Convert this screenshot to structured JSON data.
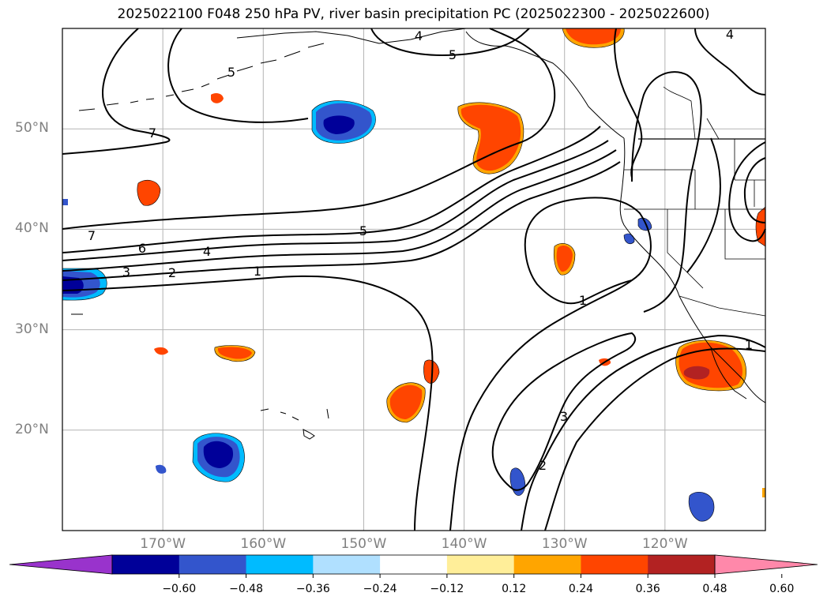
{
  "title": "2025022100 F048 250 hPa PV, river basin precipitation PC (2025022300 - 2025022600)",
  "map": {
    "projection": "equirectangular",
    "lon_range": [
      -180,
      -110
    ],
    "lat_range": [
      10,
      60
    ],
    "grid": true,
    "lat_ticks": [
      {
        "value": 20,
        "label": "20°N"
      },
      {
        "value": 30,
        "label": "30°N"
      },
      {
        "value": 40,
        "label": "40°N"
      },
      {
        "value": 50,
        "label": "50°N"
      }
    ],
    "lon_ticks": [
      {
        "value": -170,
        "label": "170°W"
      },
      {
        "value": -160,
        "label": "160°W"
      },
      {
        "value": -150,
        "label": "150°W"
      },
      {
        "value": -140,
        "label": "140°W"
      },
      {
        "value": -130,
        "label": "130°W"
      },
      {
        "value": -120,
        "label": "120°W"
      }
    ],
    "contour_labels": [
      "7",
      "6",
      "5",
      "4",
      "3",
      "2",
      "1",
      "5",
      "5",
      "4",
      "4",
      "1",
      "1",
      "3",
      "2",
      "7"
    ]
  },
  "colorbar": {
    "orientation": "horizontal",
    "extend": "both",
    "colors": [
      "#9933cc",
      "#000099",
      "#3355cc",
      "#00bbff",
      "#b0e0ff",
      "#ffffff",
      "#ffee99",
      "#ffa500",
      "#ff4500",
      "#b22222",
      "#ff88aa"
    ],
    "tick_labels": [
      "−0.60",
      "−0.48",
      "−0.36",
      "−0.24",
      "−0.12",
      "0.12",
      "0.24",
      "0.36",
      "0.48",
      "0.60"
    ]
  }
}
